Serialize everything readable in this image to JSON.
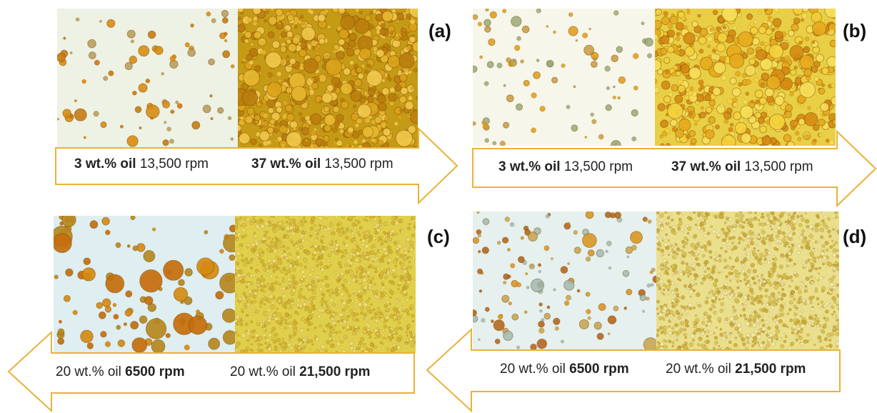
{
  "panels": [
    {
      "id": "a",
      "label": "(a)",
      "direction": "right",
      "captions": [
        {
          "bold": "3 wt.% oil",
          "normal": "13,500 rpm",
          "bold_first": true
        },
        {
          "bold": "37 wt.% oil",
          "normal": "13,500 rpm",
          "bold_first": true
        }
      ]
    },
    {
      "id": "b",
      "label": "(b)",
      "direction": "right",
      "captions": [
        {
          "bold": "3 wt.% oil",
          "normal": "13,500 rpm",
          "bold_first": true
        },
        {
          "bold": "37 wt.% oil",
          "normal": "13,500 rpm",
          "bold_first": true
        }
      ]
    },
    {
      "id": "c",
      "label": "(c)",
      "direction": "left",
      "captions": [
        {
          "normal": "20 wt.% oil",
          "bold": "6500 rpm",
          "bold_first": false
        },
        {
          "normal": "20 wt.% oil",
          "bold": "21,500 rpm",
          "bold_first": false
        }
      ]
    },
    {
      "id": "d",
      "label": "(d)",
      "direction": "left",
      "captions": [
        {
          "normal": "20 wt.% oil",
          "bold": "6500 rpm",
          "bold_first": false
        },
        {
          "normal": "20 wt.% oil",
          "bold": "21,500 rpm",
          "bold_first": false
        }
      ]
    }
  ],
  "colors": {
    "arrow_stroke": "#e8b23a",
    "dilute_bg": "#eef3e6",
    "dense_bg": "#c9a318",
    "fine_bg": "#e3d468",
    "droplet_orange": "#d48a14",
    "droplet_dark": "#a35a0a"
  }
}
